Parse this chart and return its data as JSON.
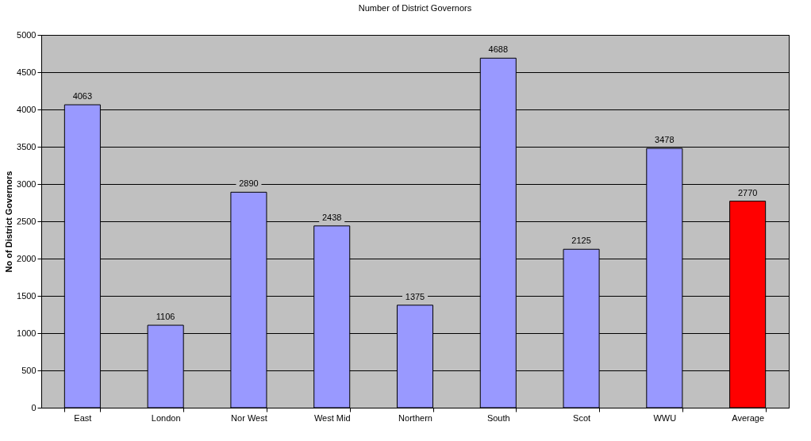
{
  "chart_data": {
    "type": "bar",
    "title": "Number of District Governors",
    "ylabel": "No of District Governors",
    "categories": [
      "East",
      "London",
      "Nor West",
      "West Mid",
      "Northern",
      "South",
      "Scot",
      "WWU",
      "Average"
    ],
    "values": [
      4063,
      1106,
      2890,
      2438,
      1375,
      4688,
      2125,
      3478,
      2770
    ],
    "colors": [
      "#9999ff",
      "#9999ff",
      "#9999ff",
      "#9999ff",
      "#9999ff",
      "#9999ff",
      "#9999ff",
      "#9999ff",
      "#ff0000"
    ],
    "ylim": [
      0,
      5000
    ],
    "yticks": [
      0,
      500,
      1000,
      1500,
      2000,
      2500,
      3000,
      3500,
      4000,
      4500,
      5000
    ],
    "grid": "y",
    "data_labels": true
  }
}
